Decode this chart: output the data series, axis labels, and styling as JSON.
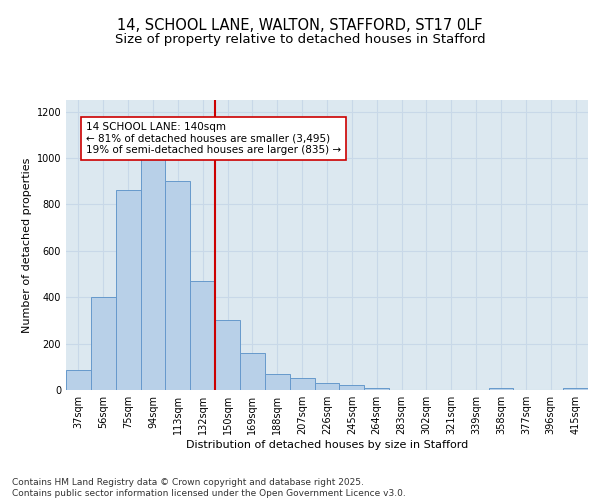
{
  "title_line1": "14, SCHOOL LANE, WALTON, STAFFORD, ST17 0LF",
  "title_line2": "Size of property relative to detached houses in Stafford",
  "xlabel": "Distribution of detached houses by size in Stafford",
  "ylabel": "Number of detached properties",
  "categories": [
    "37sqm",
    "56sqm",
    "75sqm",
    "94sqm",
    "113sqm",
    "132sqm",
    "150sqm",
    "169sqm",
    "188sqm",
    "207sqm",
    "226sqm",
    "245sqm",
    "264sqm",
    "283sqm",
    "302sqm",
    "321sqm",
    "339sqm",
    "358sqm",
    "377sqm",
    "396sqm",
    "415sqm"
  ],
  "values": [
    85,
    400,
    860,
    1000,
    900,
    470,
    300,
    160,
    70,
    50,
    30,
    20,
    10,
    0,
    0,
    0,
    0,
    10,
    0,
    0,
    10
  ],
  "bar_color": "#b8d0e8",
  "bar_edge_color": "#6699cc",
  "marker_index": 5,
  "marker_label_lines": [
    "14 SCHOOL LANE: 140sqm",
    "← 81% of detached houses are smaller (3,495)",
    "19% of semi-detached houses are larger (835) →"
  ],
  "marker_color": "#cc0000",
  "annotation_box_color": "#ffffff",
  "annotation_box_edge": "#cc0000",
  "grid_color": "#c8d8e8",
  "background_color": "#dce8f0",
  "ylim": [
    0,
    1250
  ],
  "yticks": [
    0,
    200,
    400,
    600,
    800,
    1000,
    1200
  ],
  "footer_line1": "Contains HM Land Registry data © Crown copyright and database right 2025.",
  "footer_line2": "Contains public sector information licensed under the Open Government Licence v3.0.",
  "title_fontsize": 10.5,
  "subtitle_fontsize": 9.5,
  "axis_label_fontsize": 8,
  "tick_fontsize": 7,
  "footer_fontsize": 6.5,
  "annot_fontsize": 7.5
}
